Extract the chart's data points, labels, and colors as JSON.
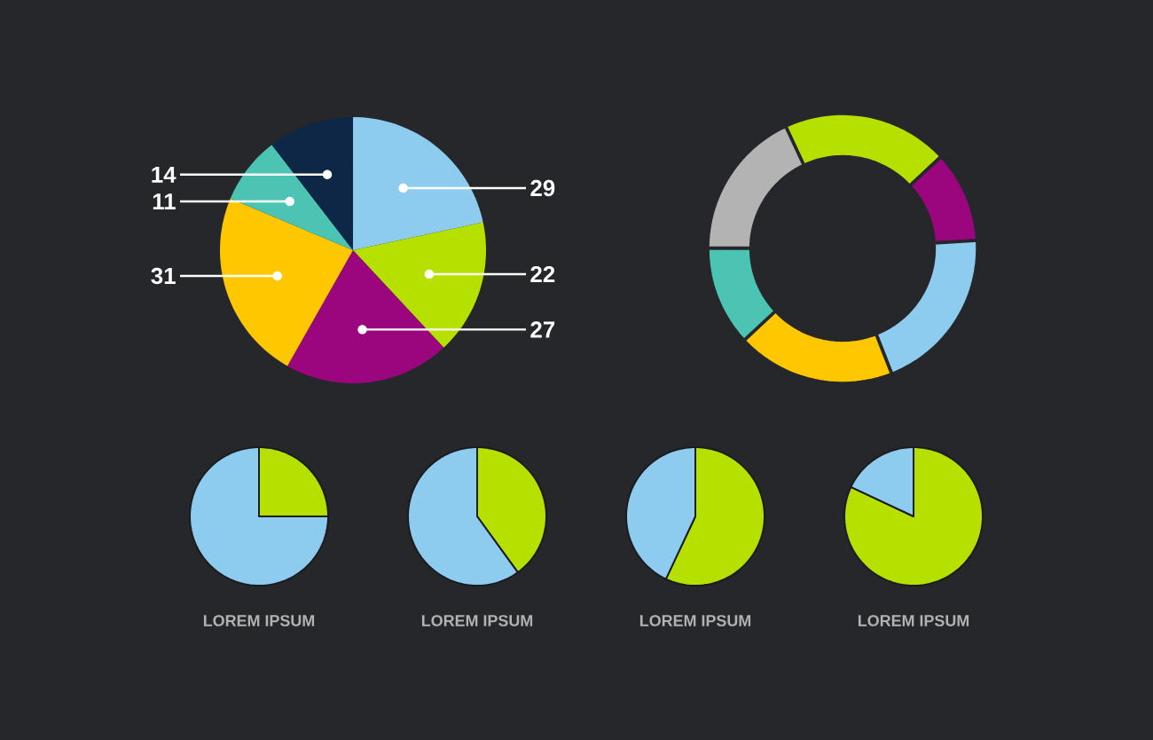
{
  "chart_data": [
    {
      "type": "pie",
      "categories": [
        null,
        null,
        null,
        null,
        null,
        null
      ],
      "values": [
        29,
        22,
        27,
        31,
        11,
        14
      ],
      "colors": [
        "#8dcbef",
        "#b5e000",
        "#9b067f",
        "#ffc700",
        "#4cc4b3",
        "#0e2747"
      ],
      "data_labels": true
    },
    {
      "type": "donut",
      "categories": [
        null,
        null,
        null,
        null,
        null,
        null
      ],
      "values": [
        20,
        11,
        20,
        19,
        12,
        18
      ],
      "colors": [
        "#b5e000",
        "#9b067f",
        "#8dcbef",
        "#ffc700",
        "#4cc4b3",
        "#b3b3b3"
      ]
    },
    {
      "type": "pie",
      "title": "LOREM IPSUM",
      "categories": [
        null,
        null
      ],
      "values": [
        25,
        75
      ],
      "colors": [
        "#b5e000",
        "#8dcbef"
      ]
    },
    {
      "type": "pie",
      "title": "LOREM IPSUM",
      "categories": [
        null,
        null
      ],
      "values": [
        40,
        60
      ],
      "colors": [
        "#b5e000",
        "#8dcbef"
      ]
    },
    {
      "type": "pie",
      "title": "LOREM IPSUM",
      "categories": [
        null,
        null
      ],
      "values": [
        57,
        43
      ],
      "colors": [
        "#b5e000",
        "#8dcbef"
      ]
    },
    {
      "type": "pie",
      "title": "LOREM IPSUM",
      "categories": [
        null,
        null
      ],
      "values": [
        82,
        18
      ],
      "colors": [
        "#b5e000",
        "#8dcbef"
      ]
    }
  ]
}
